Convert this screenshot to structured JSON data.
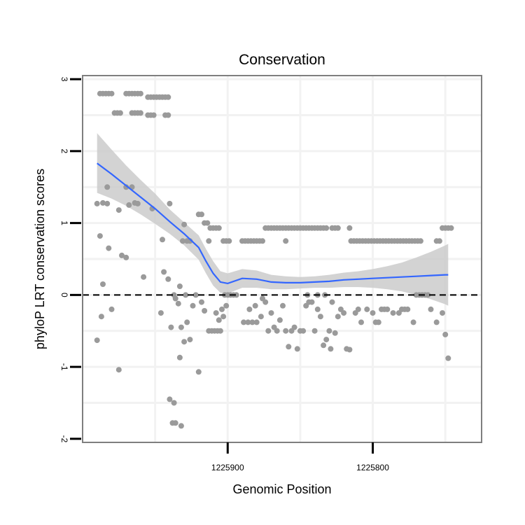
{
  "chart_data": {
    "type": "scatter",
    "title": "Conservation",
    "xlabel": "Genomic Position",
    "ylabel": "phyloP LRT conservation scores",
    "x_reversed": true,
    "xlim": [
      1226000,
      1225725
    ],
    "ylim": [
      -2.05,
      3.05
    ],
    "x_ticks": [
      1225900,
      1225800
    ],
    "x_tick_labels": [
      "1225900",
      "1225800"
    ],
    "y_ticks": [
      -2,
      -1,
      0,
      1,
      2,
      3
    ],
    "y_tick_labels": [
      "-2",
      "-1",
      "0",
      "1",
      "2",
      "3"
    ],
    "reference_line": {
      "y": 0,
      "style": "dashed",
      "color": "#000000"
    },
    "colors": {
      "points": "#9a9a9a",
      "smooth_line": "#3366ff",
      "confidence_band": "#c8c8c8",
      "panel_border": "#7f7f7f",
      "gridline": "#f2f2f2"
    },
    "series": [
      {
        "name": "phyloP scores",
        "points": [
          [
            1225988,
            2.8
          ],
          [
            1225986,
            2.8
          ],
          [
            1225984,
            2.8
          ],
          [
            1225982,
            2.8
          ],
          [
            1225980,
            2.8
          ],
          [
            1225978,
            2.53
          ],
          [
            1225976,
            2.53
          ],
          [
            1225974,
            2.53
          ],
          [
            1225970,
            2.8
          ],
          [
            1225968,
            2.8
          ],
          [
            1225966,
            2.8
          ],
          [
            1225964,
            2.8
          ],
          [
            1225962,
            2.8
          ],
          [
            1225960,
            2.8
          ],
          [
            1225966,
            2.53
          ],
          [
            1225964,
            2.53
          ],
          [
            1225962,
            2.53
          ],
          [
            1225960,
            2.53
          ],
          [
            1225955,
            2.75
          ],
          [
            1225953,
            2.75
          ],
          [
            1225951,
            2.75
          ],
          [
            1225949,
            2.75
          ],
          [
            1225947,
            2.75
          ],
          [
            1225945,
            2.75
          ],
          [
            1225943,
            2.75
          ],
          [
            1225941,
            2.75
          ],
          [
            1225955,
            2.5
          ],
          [
            1225953,
            2.5
          ],
          [
            1225951,
            2.5
          ],
          [
            1225943,
            2.5
          ],
          [
            1225941,
            2.5
          ],
          [
            1225990,
            1.27
          ],
          [
            1225986,
            1.28
          ],
          [
            1225983,
            1.27
          ],
          [
            1225983,
            1.5
          ],
          [
            1225970,
            1.5
          ],
          [
            1225966,
            1.5
          ],
          [
            1225964,
            1.28
          ],
          [
            1225968,
            1.25
          ],
          [
            1225962,
            1.27
          ],
          [
            1225952,
            1.2
          ],
          [
            1225975,
            1.18
          ],
          [
            1225973,
            0.55
          ],
          [
            1225970,
            0.52
          ],
          [
            1225988,
            0.82
          ],
          [
            1225982,
            0.65
          ],
          [
            1225990,
            -0.63
          ],
          [
            1225987,
            -0.3
          ],
          [
            1225986,
            0.15
          ],
          [
            1225980,
            -0.2
          ],
          [
            1225975,
            -1.04
          ],
          [
            1225958,
            0.25
          ],
          [
            1225945,
            0.77
          ],
          [
            1225944,
            0.32
          ],
          [
            1225941,
            0.22
          ],
          [
            1225940,
            1.27
          ],
          [
            1225946,
            -0.25
          ],
          [
            1225939,
            -0.45
          ],
          [
            1225937,
            0.0
          ],
          [
            1225936,
            -0.05
          ],
          [
            1225934,
            -0.12
          ],
          [
            1225933,
            0.12
          ],
          [
            1225932,
            -0.45
          ],
          [
            1225930,
            -0.65
          ],
          [
            1225928,
            -0.38
          ],
          [
            1225926,
            -0.62
          ],
          [
            1225924,
            -0.15
          ],
          [
            1225922,
            0.0
          ],
          [
            1225920,
            -1.07
          ],
          [
            1225916,
            -0.22
          ],
          [
            1225933,
            -0.87
          ],
          [
            1225940,
            -1.45
          ],
          [
            1225937,
            -1.5
          ],
          [
            1225936,
            -1.78
          ],
          [
            1225938,
            -1.78
          ],
          [
            1225932,
            -1.82
          ],
          [
            1225930,
            0.98
          ],
          [
            1225929,
            0.0
          ],
          [
            1225928,
            0.75
          ],
          [
            1225926,
            0.75
          ],
          [
            1225931,
            0.75
          ],
          [
            1225920,
            1.12
          ],
          [
            1225918,
            1.12
          ],
          [
            1225916,
            1.0
          ],
          [
            1225914,
            1.0
          ],
          [
            1225912,
            0.93
          ],
          [
            1225910,
            0.93
          ],
          [
            1225908,
            0.93
          ],
          [
            1225906,
            0.93
          ],
          [
            1225913,
            0.75
          ],
          [
            1225903,
            0.75
          ],
          [
            1225901,
            0.75
          ],
          [
            1225899,
            0.75
          ],
          [
            1225918,
            -0.1
          ],
          [
            1225913,
            -0.5
          ],
          [
            1225911,
            -0.5
          ],
          [
            1225909,
            -0.5
          ],
          [
            1225907,
            -0.5
          ],
          [
            1225905,
            -0.5
          ],
          [
            1225908,
            -0.25
          ],
          [
            1225906,
            -0.35
          ],
          [
            1225904,
            -0.2
          ],
          [
            1225903,
            -0.3
          ],
          [
            1225901,
            -0.15
          ],
          [
            1225902,
            0.0
          ],
          [
            1225900,
            0.0
          ],
          [
            1225898,
            0.0
          ],
          [
            1225896,
            0.0
          ],
          [
            1225894,
            0.0
          ],
          [
            1225890,
            0.75
          ],
          [
            1225888,
            0.75
          ],
          [
            1225886,
            0.75
          ],
          [
            1225884,
            0.75
          ],
          [
            1225882,
            0.75
          ],
          [
            1225880,
            0.75
          ],
          [
            1225878,
            0.75
          ],
          [
            1225876,
            0.75
          ],
          [
            1225889,
            -0.38
          ],
          [
            1225886,
            -0.38
          ],
          [
            1225883,
            -0.38
          ],
          [
            1225880,
            -0.38
          ],
          [
            1225877,
            -0.3
          ],
          [
            1225885,
            -0.2
          ],
          [
            1225881,
            -0.15
          ],
          [
            1225876,
            -0.05
          ],
          [
            1225874,
            0.93
          ],
          [
            1225872,
            0.93
          ],
          [
            1225870,
            0.93
          ],
          [
            1225868,
            0.93
          ],
          [
            1225866,
            0.93
          ],
          [
            1225864,
            0.93
          ],
          [
            1225862,
            0.93
          ],
          [
            1225860,
            0.93
          ],
          [
            1225858,
            0.93
          ],
          [
            1225856,
            0.93
          ],
          [
            1225854,
            0.93
          ],
          [
            1225852,
            0.93
          ],
          [
            1225850,
            0.93
          ],
          [
            1225848,
            0.93
          ],
          [
            1225846,
            0.93
          ],
          [
            1225844,
            0.93
          ],
          [
            1225842,
            0.93
          ],
          [
            1225840,
            0.93
          ],
          [
            1225838,
            0.93
          ],
          [
            1225836,
            0.93
          ],
          [
            1225834,
            0.93
          ],
          [
            1225832,
            0.93
          ],
          [
            1225828,
            0.93
          ],
          [
            1225826,
            0.93
          ],
          [
            1225824,
            0.93
          ],
          [
            1225816,
            0.93
          ],
          [
            1225860,
            0.75
          ],
          [
            1225874,
            -0.1
          ],
          [
            1225872,
            -0.5
          ],
          [
            1225870,
            -0.25
          ],
          [
            1225868,
            -0.45
          ],
          [
            1225866,
            -0.5
          ],
          [
            1225864,
            -0.35
          ],
          [
            1225862,
            -0.15
          ],
          [
            1225860,
            -0.5
          ],
          [
            1225858,
            -0.72
          ],
          [
            1225856,
            -0.5
          ],
          [
            1225854,
            -0.45
          ],
          [
            1225852,
            -0.75
          ],
          [
            1225850,
            -0.5
          ],
          [
            1225848,
            -0.5
          ],
          [
            1225846,
            -0.15
          ],
          [
            1225844,
            -0.1
          ],
          [
            1225842,
            -0.1
          ],
          [
            1225840,
            -0.5
          ],
          [
            1225838,
            -0.2
          ],
          [
            1225836,
            -0.3
          ],
          [
            1225834,
            -0.7
          ],
          [
            1225832,
            -0.62
          ],
          [
            1225830,
            -0.5
          ],
          [
            1225829,
            -0.75
          ],
          [
            1225828,
            -0.1
          ],
          [
            1225826,
            -0.53
          ],
          [
            1225824,
            -0.3
          ],
          [
            1225822,
            -0.2
          ],
          [
            1225820,
            -0.25
          ],
          [
            1225818,
            -0.75
          ],
          [
            1225816,
            -0.76
          ],
          [
            1225845,
            0.0
          ],
          [
            1225838,
            0.0
          ],
          [
            1225833,
            0.0
          ],
          [
            1225815,
            0.75
          ],
          [
            1225813,
            0.75
          ],
          [
            1225811,
            0.75
          ],
          [
            1225809,
            0.75
          ],
          [
            1225807,
            0.75
          ],
          [
            1225805,
            0.75
          ],
          [
            1225803,
            0.75
          ],
          [
            1225801,
            0.75
          ],
          [
            1225799,
            0.75
          ],
          [
            1225797,
            0.75
          ],
          [
            1225795,
            0.75
          ],
          [
            1225793,
            0.75
          ],
          [
            1225791,
            0.75
          ],
          [
            1225789,
            0.75
          ],
          [
            1225787,
            0.75
          ],
          [
            1225785,
            0.75
          ],
          [
            1225783,
            0.75
          ],
          [
            1225781,
            0.75
          ],
          [
            1225779,
            0.75
          ],
          [
            1225777,
            0.75
          ],
          [
            1225775,
            0.75
          ],
          [
            1225773,
            0.75
          ],
          [
            1225771,
            0.75
          ],
          [
            1225769,
            0.75
          ],
          [
            1225767,
            0.75
          ],
          [
            1225812,
            -0.25
          ],
          [
            1225810,
            -0.2
          ],
          [
            1225808,
            -0.38
          ],
          [
            1225804,
            -0.2
          ],
          [
            1225800,
            -0.25
          ],
          [
            1225798,
            -0.38
          ],
          [
            1225796,
            -0.38
          ],
          [
            1225794,
            -0.2
          ],
          [
            1225792,
            -0.2
          ],
          [
            1225790,
            -0.2
          ],
          [
            1225786,
            -0.25
          ],
          [
            1225782,
            -0.25
          ],
          [
            1225780,
            -0.2
          ],
          [
            1225778,
            -0.2
          ],
          [
            1225776,
            -0.2
          ],
          [
            1225772,
            -0.38
          ],
          [
            1225770,
            0.0
          ],
          [
            1225768,
            0.0
          ],
          [
            1225766,
            0.0
          ],
          [
            1225764,
            0.0
          ],
          [
            1225762,
            0.0
          ],
          [
            1225760,
            -0.2
          ],
          [
            1225756,
            0.75
          ],
          [
            1225754,
            0.75
          ],
          [
            1225752,
            0.93
          ],
          [
            1225750,
            0.93
          ],
          [
            1225748,
            0.93
          ],
          [
            1225746,
            0.93
          ],
          [
            1225756,
            -0.38
          ],
          [
            1225752,
            -0.25
          ],
          [
            1225750,
            -0.55
          ],
          [
            1225748,
            -0.88
          ]
        ]
      }
    ],
    "smooth": {
      "name": "loess fit",
      "x": [
        1225990,
        1225980,
        1225970,
        1225960,
        1225950,
        1225940,
        1225930,
        1225920,
        1225915,
        1225910,
        1225905,
        1225900,
        1225890,
        1225880,
        1225870,
        1225860,
        1225850,
        1225840,
        1225830,
        1225820,
        1225810,
        1225800,
        1225790,
        1225780,
        1225770,
        1225760,
        1225750,
        1225748
      ],
      "y": [
        1.83,
        1.68,
        1.52,
        1.36,
        1.2,
        1.02,
        0.85,
        0.66,
        0.47,
        0.3,
        0.18,
        0.16,
        0.23,
        0.22,
        0.18,
        0.17,
        0.17,
        0.18,
        0.19,
        0.21,
        0.22,
        0.23,
        0.24,
        0.25,
        0.26,
        0.27,
        0.28,
        0.28
      ],
      "lower": [
        1.42,
        1.34,
        1.24,
        1.12,
        0.99,
        0.85,
        0.69,
        0.49,
        0.3,
        0.13,
        0.03,
        0.02,
        0.1,
        0.1,
        0.08,
        0.08,
        0.09,
        0.1,
        0.1,
        0.11,
        0.11,
        0.1,
        0.08,
        0.05,
        0.0,
        -0.06,
        -0.13,
        -0.15
      ],
      "upper": [
        2.25,
        2.02,
        1.8,
        1.6,
        1.41,
        1.19,
        1.01,
        0.83,
        0.64,
        0.47,
        0.33,
        0.3,
        0.36,
        0.34,
        0.28,
        0.26,
        0.25,
        0.26,
        0.28,
        0.31,
        0.33,
        0.36,
        0.4,
        0.45,
        0.52,
        0.6,
        0.69,
        0.71
      ]
    }
  }
}
